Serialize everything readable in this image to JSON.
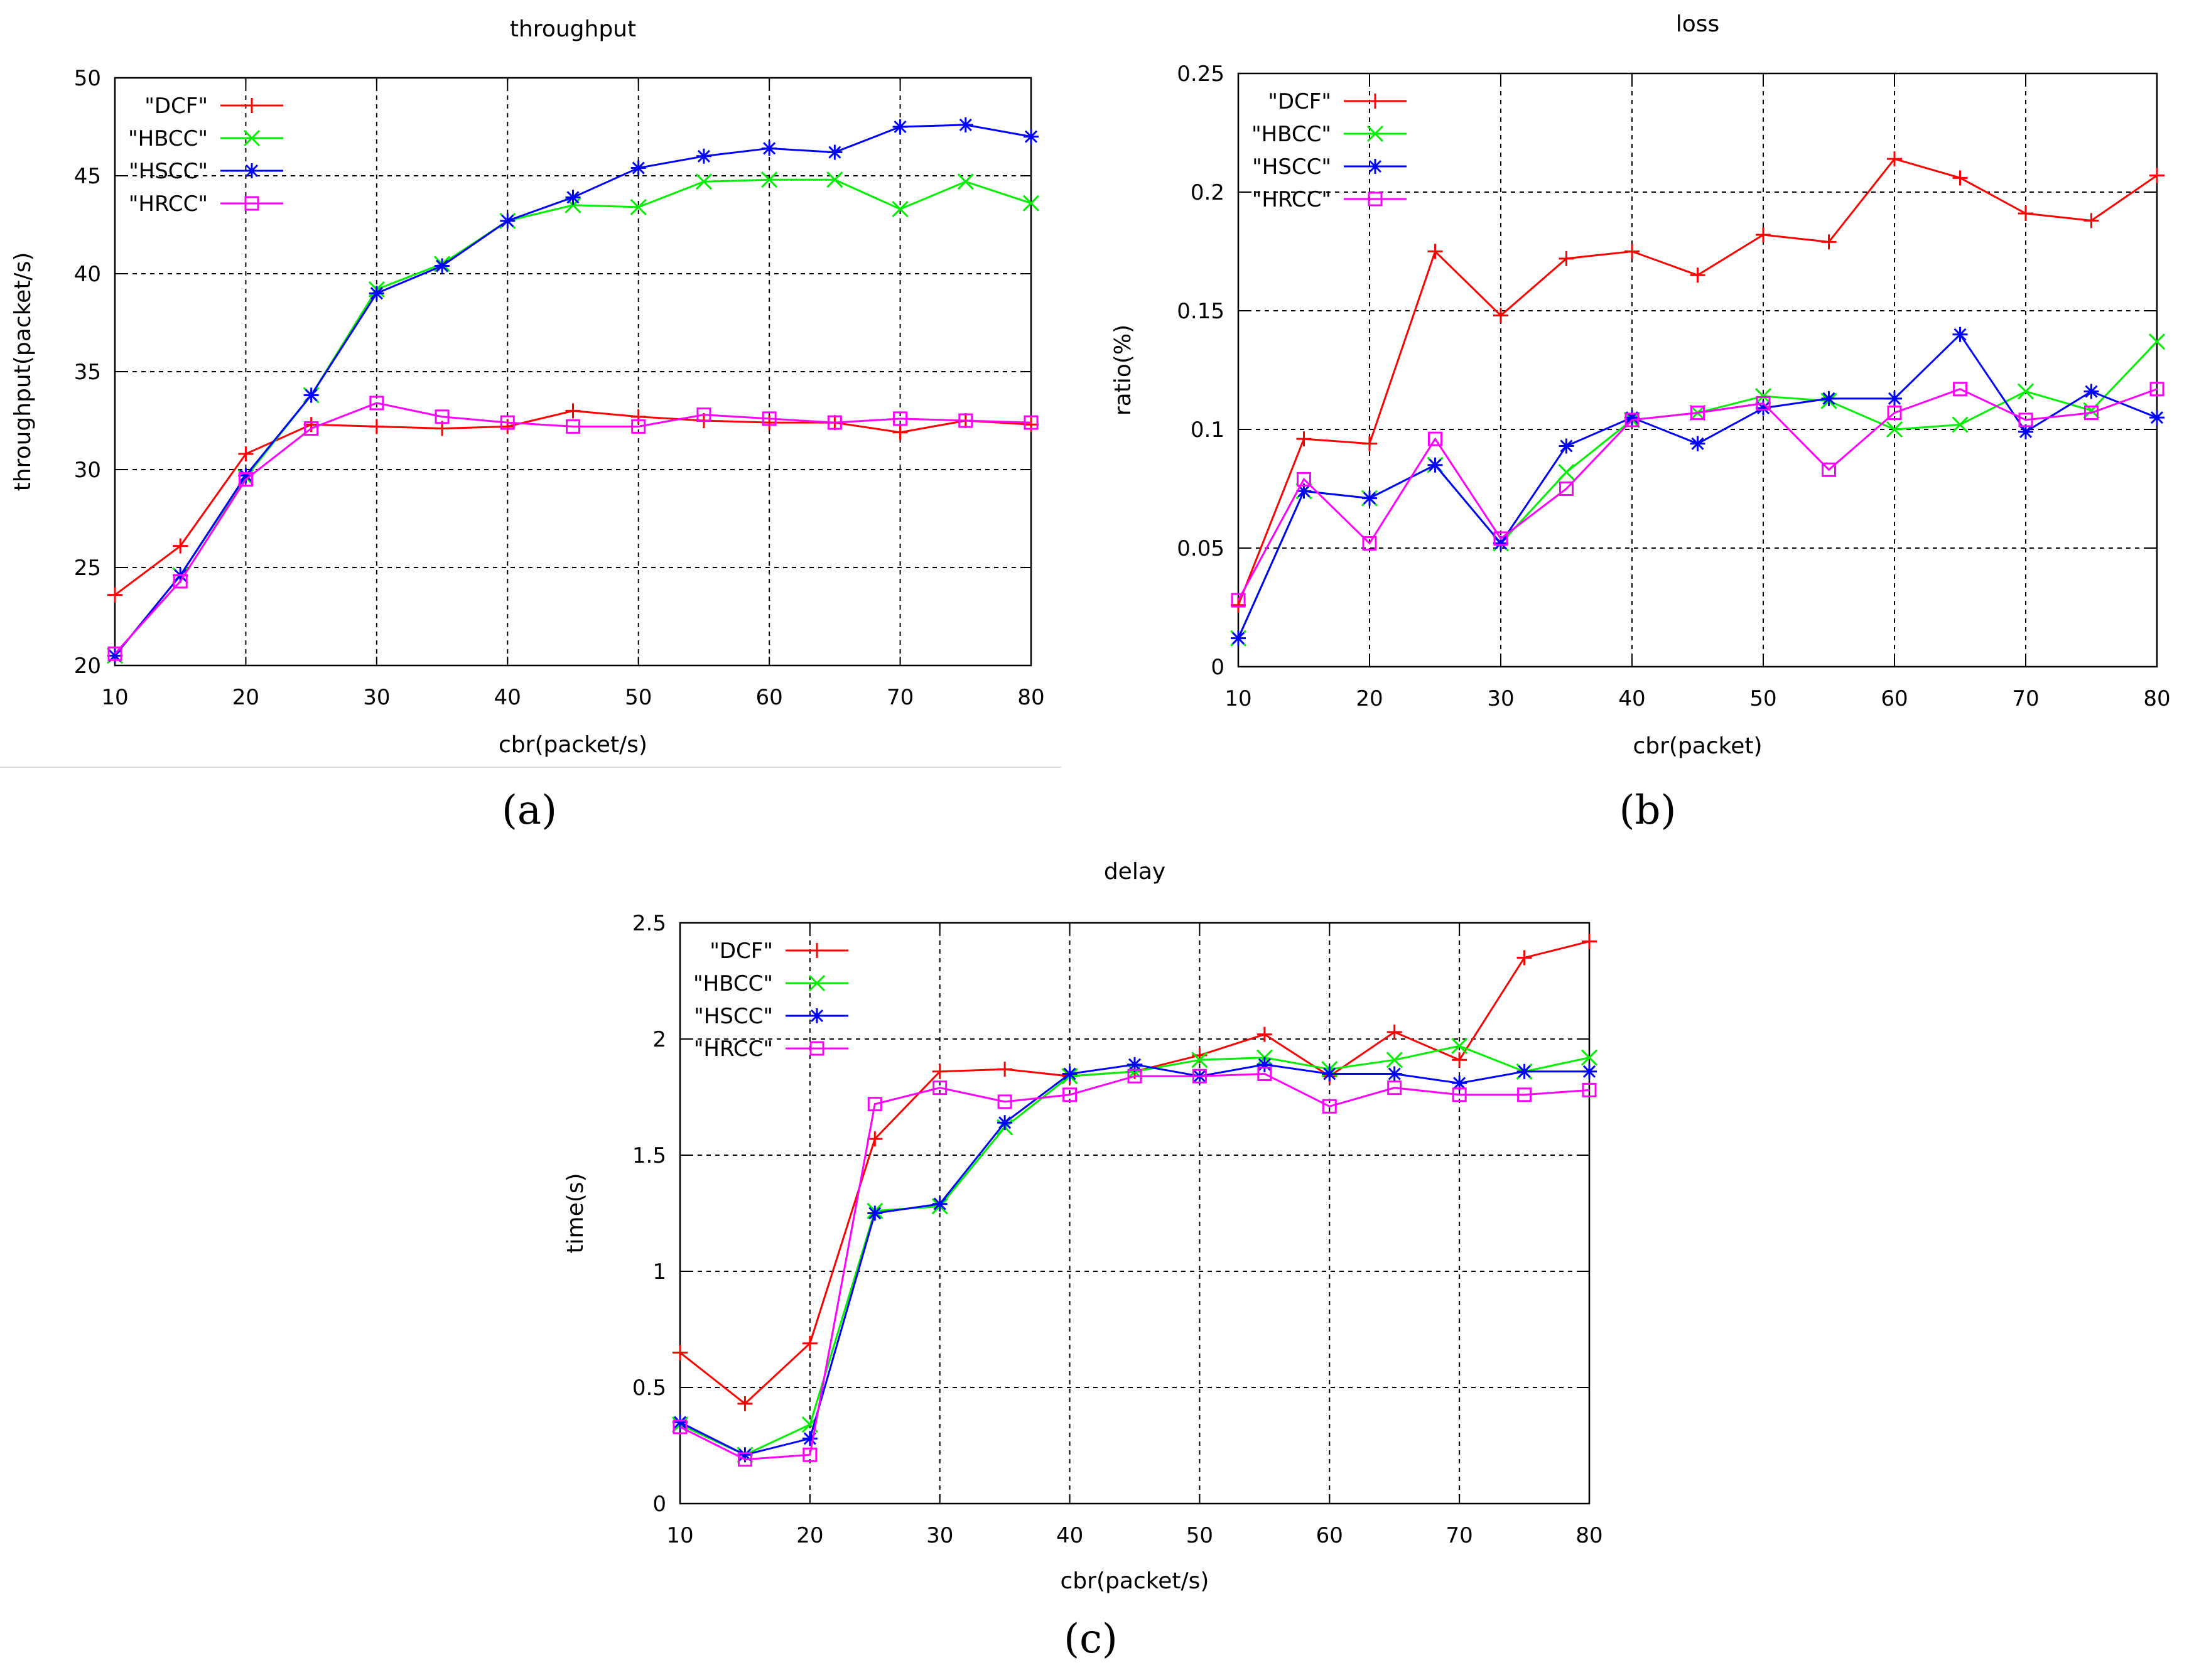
{
  "colors": {
    "DCF": "#ff0000",
    "HBCC": "#00ee00",
    "HSCC": "#0000ff",
    "HRCC": "#ff00ff"
  },
  "chart_data": [
    {
      "type": "line",
      "title": "throughput",
      "xlabel": "cbr(packet/s)",
      "ylabel": "throughput(packet/s)",
      "caption": "(a)",
      "xlim": [
        10,
        80
      ],
      "ylim": [
        20,
        50
      ],
      "xticks": [
        10,
        20,
        30,
        40,
        50,
        60,
        70,
        80
      ],
      "xtick_labels": [
        "10",
        "20",
        "30",
        "40",
        "50",
        "60",
        "70",
        "80"
      ],
      "yticks": [
        20,
        25,
        30,
        35,
        40,
        45,
        50
      ],
      "ytick_labels": [
        "20",
        "25",
        "30",
        "35",
        "40",
        "45",
        "50"
      ],
      "grid": true,
      "legend_position": "top-left",
      "x": [
        10,
        15,
        20,
        25,
        30,
        35,
        40,
        45,
        50,
        55,
        60,
        65,
        70,
        75,
        80
      ],
      "series": [
        {
          "name": "DCF",
          "label": "\"DCF\"",
          "marker": "plus",
          "values": [
            23.6,
            26.1,
            30.8,
            32.3,
            32.2,
            32.1,
            32.2,
            33.0,
            32.7,
            32.5,
            32.4,
            32.4,
            31.9,
            32.5,
            32.3
          ]
        },
        {
          "name": "HBCC",
          "label": "\"HBCC\"",
          "marker": "x",
          "values": [
            20.5,
            24.6,
            29.6,
            33.8,
            39.2,
            40.5,
            42.7,
            43.5,
            43.4,
            44.7,
            44.8,
            44.8,
            43.3,
            44.7,
            43.6
          ]
        },
        {
          "name": "HSCC",
          "label": "\"HSCC\"",
          "marker": "star",
          "values": [
            20.5,
            24.6,
            29.7,
            33.8,
            39.0,
            40.4,
            42.7,
            43.9,
            45.4,
            46.0,
            46.4,
            46.2,
            47.5,
            47.6,
            47.0
          ]
        },
        {
          "name": "HRCC",
          "label": "\"HRCC\"",
          "marker": "square",
          "values": [
            20.6,
            24.3,
            29.5,
            32.1,
            33.4,
            32.7,
            32.4,
            32.2,
            32.2,
            32.8,
            32.6,
            32.4,
            32.6,
            32.5,
            32.4
          ]
        }
      ]
    },
    {
      "type": "line",
      "title": "loss",
      "xlabel": "cbr(packet)",
      "ylabel": "ratio(%)",
      "caption": "(b)",
      "xlim": [
        10,
        80
      ],
      "ylim": [
        0,
        0.25
      ],
      "xticks": [
        10,
        20,
        30,
        40,
        50,
        60,
        70,
        80
      ],
      "xtick_labels": [
        "10",
        "20",
        "30",
        "40",
        "50",
        "60",
        "70",
        "80"
      ],
      "yticks": [
        0,
        0.05,
        0.1,
        0.15,
        0.2,
        0.25
      ],
      "ytick_labels": [
        "0",
        "0.05",
        "0.1",
        "0.15",
        "0.2",
        "0.25"
      ],
      "grid": true,
      "legend_position": "top-left",
      "x": [
        10,
        15,
        20,
        25,
        30,
        35,
        40,
        45,
        50,
        55,
        60,
        65,
        70,
        75,
        80
      ],
      "series": [
        {
          "name": "DCF",
          "label": "\"DCF\"",
          "marker": "plus",
          "values": [
            0.026,
            0.096,
            0.094,
            0.175,
            0.148,
            0.172,
            0.175,
            0.165,
            0.182,
            0.179,
            0.214,
            0.206,
            0.191,
            0.188,
            0.207
          ]
        },
        {
          "name": "HBCC",
          "label": "\"HBCC\"",
          "marker": "x",
          "values": [
            0.012,
            0.074,
            0.071,
            0.085,
            0.052,
            0.082,
            0.104,
            0.107,
            0.114,
            0.112,
            0.1,
            0.102,
            0.116,
            0.108,
            0.137
          ]
        },
        {
          "name": "HSCC",
          "label": "\"HSCC\"",
          "marker": "star",
          "values": [
            0.012,
            0.074,
            0.071,
            0.085,
            0.052,
            0.093,
            0.105,
            0.094,
            0.109,
            0.113,
            0.113,
            0.14,
            0.099,
            0.116,
            0.105
          ]
        },
        {
          "name": "HRCC",
          "label": "\"HRCC\"",
          "marker": "square",
          "values": [
            0.028,
            0.079,
            0.052,
            0.096,
            0.054,
            0.075,
            0.104,
            0.107,
            0.111,
            0.083,
            0.107,
            0.117,
            0.104,
            0.107,
            0.117
          ]
        }
      ]
    },
    {
      "type": "line",
      "title": "delay",
      "xlabel": "cbr(packet/s)",
      "ylabel": "time(s)",
      "caption": "(c)",
      "xlim": [
        10,
        80
      ],
      "ylim": [
        0,
        2.5
      ],
      "xticks": [
        10,
        20,
        30,
        40,
        50,
        60,
        70,
        80
      ],
      "xtick_labels": [
        "10",
        "20",
        "30",
        "40",
        "50",
        "60",
        "70",
        "80"
      ],
      "yticks": [
        0,
        0.5,
        1,
        1.5,
        2,
        2.5
      ],
      "ytick_labels": [
        "0",
        "0.5",
        "1",
        "1.5",
        "2",
        "2.5"
      ],
      "grid": true,
      "legend_position": "top-left",
      "x": [
        10,
        15,
        20,
        25,
        30,
        35,
        40,
        45,
        50,
        55,
        60,
        65,
        70,
        75,
        80
      ],
      "series": [
        {
          "name": "DCF",
          "label": "\"DCF\"",
          "marker": "plus",
          "values": [
            0.65,
            0.43,
            0.69,
            1.57,
            1.86,
            1.87,
            1.84,
            1.86,
            1.93,
            2.02,
            1.84,
            2.03,
            1.91,
            2.35,
            2.42
          ]
        },
        {
          "name": "HBCC",
          "label": "\"HBCC\"",
          "marker": "x",
          "values": [
            0.34,
            0.21,
            0.34,
            1.26,
            1.28,
            1.62,
            1.84,
            1.86,
            1.91,
            1.92,
            1.87,
            1.91,
            1.97,
            1.86,
            1.92
          ]
        },
        {
          "name": "HSCC",
          "label": "\"HSCC\"",
          "marker": "star",
          "values": [
            0.35,
            0.21,
            0.28,
            1.25,
            1.29,
            1.64,
            1.85,
            1.89,
            1.84,
            1.89,
            1.85,
            1.85,
            1.81,
            1.86,
            1.86
          ]
        },
        {
          "name": "HRCC",
          "label": "\"HRCC\"",
          "marker": "square",
          "values": [
            0.33,
            0.19,
            0.21,
            1.72,
            1.79,
            1.73,
            1.76,
            1.84,
            1.84,
            1.85,
            1.71,
            1.79,
            1.76,
            1.76,
            1.78
          ]
        }
      ]
    }
  ]
}
